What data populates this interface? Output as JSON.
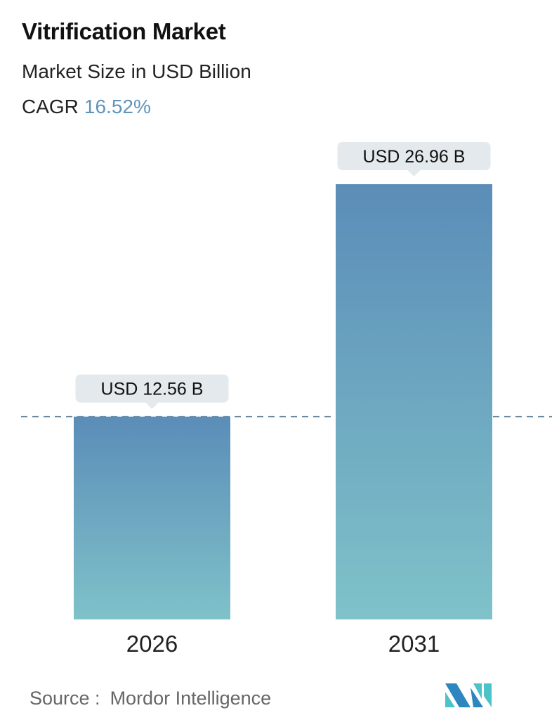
{
  "header": {
    "title": "Vitrification Market",
    "subtitle": "Market Size in USD Billion",
    "cagr_label": "CAGR",
    "cagr_value": "16.52%"
  },
  "chart_data": {
    "type": "bar",
    "categories": [
      "2026",
      "2031"
    ],
    "values": [
      12.56,
      26.96
    ],
    "data_labels": [
      "USD 12.56 B",
      "USD 26.96 B"
    ],
    "title": "Vitrification Market",
    "ylabel": "Market Size in USD Billion",
    "ylim": [
      0,
      26.96
    ],
    "grid": false,
    "reference_line": "dashed at first bar value",
    "colors": {
      "bar_top": "#5b8db8",
      "bar_bottom": "#7fc2c9",
      "label_bg": "#e3e9ec",
      "dash": "#5a7d94"
    }
  },
  "footer": {
    "source_label": "Source :",
    "source_name": "Mordor Intelligence",
    "logo_colors": [
      "#2e86c1",
      "#4cc3c9"
    ]
  }
}
